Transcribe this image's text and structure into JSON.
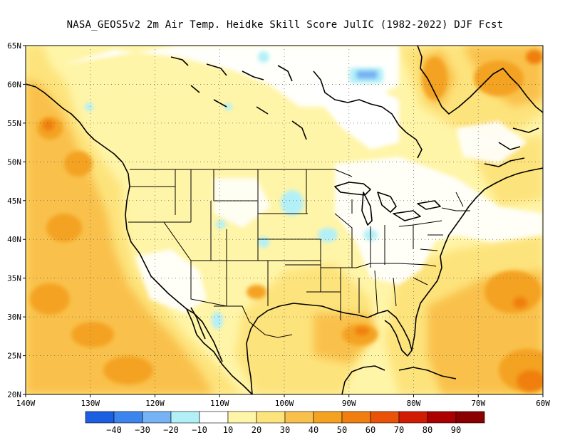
{
  "title": "NASA_GEOS5v2  2m Air Temp. Heidke Skill Score JulIC (1982-2022) DJF Fcst",
  "map": {
    "lat_labels": [
      "65N",
      "60N",
      "55N",
      "50N",
      "45N",
      "40N",
      "35N",
      "30N",
      "25N",
      "20N"
    ],
    "lon_labels": [
      "140W",
      "130W",
      "120W",
      "110W",
      "100W",
      "90W",
      "80W",
      "70W",
      "60W"
    ],
    "extent": {
      "lon_min": -140,
      "lon_max": -60,
      "lat_min": 20,
      "lat_max": 65
    },
    "gridlines": "dotted"
  },
  "colorbar": {
    "colors": [
      "#1c5fe0",
      "#3d85ee",
      "#76b2f4",
      "#b2f0f8",
      "#ffffff",
      "#fff5a8",
      "#fde37c",
      "#f9c14c",
      "#f4a220",
      "#f07f10",
      "#e95208",
      "#d11c04",
      "#aa0000",
      "#8a0000"
    ],
    "labels": [
      "−40",
      "−30",
      "−20",
      "−10",
      "10",
      "20",
      "30",
      "40",
      "50",
      "60",
      "70",
      "80",
      "90"
    ]
  }
}
